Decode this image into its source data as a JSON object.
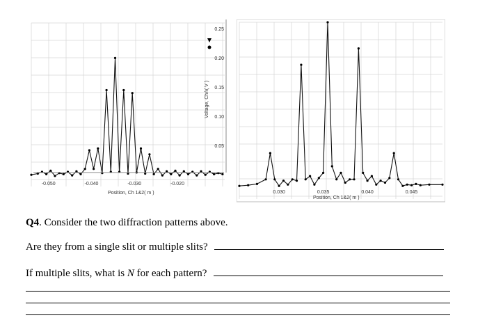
{
  "chart_data": [
    {
      "type": "line",
      "xlabel": "Position, Ch 1&2( m )",
      "ylabel": "Voltage, ChA( V )",
      "x_ticks": [
        "-0.050",
        "-0.040",
        "-0.030",
        "-0.020"
      ],
      "y_ticks": [
        "0.05",
        "0.10",
        "0.15",
        "0.20",
        "0.25"
      ],
      "xlim": [
        -0.054,
        -0.009
      ],
      "ylim": [
        -0.02,
        0.26
      ],
      "grid": true,
      "series": [
        {
          "x": [
            -0.054,
            -0.0525,
            -0.0515,
            -0.0505,
            -0.0495,
            -0.0485,
            -0.0475,
            -0.0465,
            -0.0455,
            -0.0445,
            -0.0435,
            -0.0425,
            -0.0415,
            -0.0405,
            -0.0395,
            -0.0385,
            -0.0375,
            -0.0365,
            -0.0355,
            -0.0345,
            -0.0335,
            -0.0325,
            -0.0315,
            -0.0305,
            -0.0295,
            -0.0285,
            -0.0275,
            -0.0265,
            -0.0255,
            -0.0245,
            -0.0235,
            -0.0225,
            -0.0215,
            -0.0205,
            -0.0195,
            -0.0185,
            -0.0175,
            -0.0165,
            -0.0155,
            -0.0145,
            -0.0135,
            -0.0125,
            -0.0115,
            -0.0105,
            -0.0095
          ],
          "y": [
            0.0,
            0.002,
            0.005,
            0.001,
            0.007,
            -0.002,
            0.003,
            0.001,
            0.005,
            -0.001,
            0.006,
            0.001,
            0.01,
            0.042,
            0.01,
            0.045,
            0.003,
            0.145,
            0.005,
            0.2,
            0.005,
            0.145,
            0.002,
            0.14,
            0.004,
            0.045,
            0.002,
            0.035,
            0.001,
            0.01,
            -0.001,
            0.006,
            0.001,
            0.007,
            -0.001,
            0.006,
            0.001,
            0.005,
            -0.001,
            0.006,
            0.0,
            0.005,
            0.001,
            0.003,
            0.001
          ]
        }
      ]
    },
    {
      "type": "line",
      "xlabel": "Position, Ch 1&2( m )",
      "x_ticks": [
        "0.030",
        "0.035",
        "0.040",
        "0.045"
      ],
      "xlim": [
        0.0255,
        0.0485
      ],
      "ylim": [
        -0.02,
        0.25
      ],
      "grid": true,
      "series": [
        {
          "x": [
            0.0255,
            0.0265,
            0.0275,
            0.0285,
            0.029,
            0.0295,
            0.03,
            0.0305,
            0.031,
            0.0315,
            0.032,
            0.0325,
            0.033,
            0.0335,
            0.034,
            0.0345,
            0.035,
            0.0355,
            0.036,
            0.0365,
            0.037,
            0.0375,
            0.038,
            0.0385,
            0.039,
            0.0395,
            0.04,
            0.0405,
            0.041,
            0.0415,
            0.042,
            0.0425,
            0.043,
            0.0435,
            0.044,
            0.0445,
            0.045,
            0.0455,
            0.046,
            0.047,
            0.0485
          ],
          "y": [
            0.0,
            0.001,
            0.003,
            0.01,
            0.05,
            0.01,
            0.0,
            0.008,
            0.002,
            0.01,
            0.008,
            0.185,
            0.01,
            0.015,
            0.002,
            0.012,
            0.02,
            0.25,
            0.03,
            0.01,
            0.02,
            0.005,
            0.01,
            0.01,
            0.21,
            0.02,
            0.008,
            0.015,
            0.002,
            0.008,
            0.005,
            0.012,
            0.05,
            0.01,
            0.0,
            0.002,
            0.001,
            0.003,
            0.001,
            0.002,
            0.002
          ]
        }
      ]
    }
  ],
  "question": {
    "number": "Q4",
    "title": ". Consider the two diffraction patterns above.",
    "line1": "Are they from a single slit or multiple slits?",
    "line2_pre": "If multiple slits, what is ",
    "line2_var": "N",
    "line2_post": " for each pattern?"
  }
}
